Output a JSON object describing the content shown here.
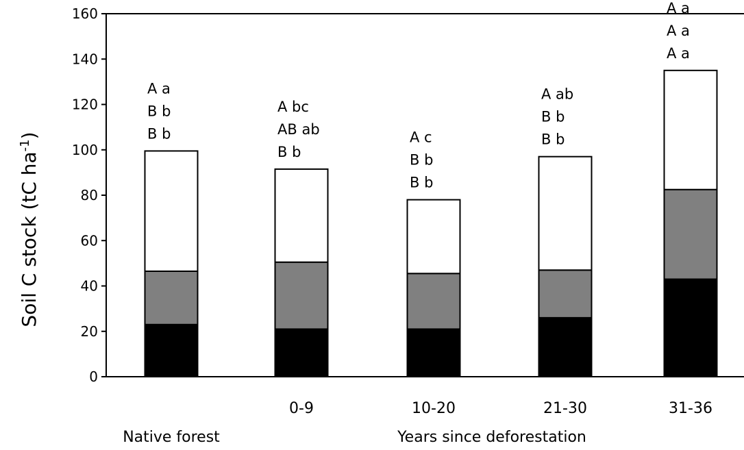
{
  "chart_data": {
    "type": "bar",
    "stacked": true,
    "categories": [
      "Native forest",
      "0-9",
      "10-20",
      "21-30",
      "31-36"
    ],
    "series": [
      {
        "values": [
          23,
          21,
          21,
          26,
          43
        ],
        "color": "#000000"
      },
      {
        "values": [
          23.5,
          29.5,
          24.5,
          21,
          39.5
        ],
        "color": "#808080"
      },
      {
        "values": [
          53,
          41,
          32.5,
          50,
          52.5
        ],
        "color": "#ffffff"
      }
    ],
    "totals": [
      99.5,
      91.5,
      78,
      97,
      135
    ],
    "significance_labels": [
      [
        "A a",
        "B b",
        "B b"
      ],
      [
        "A bc",
        "AB ab",
        "B b"
      ],
      [
        "A c",
        "B b",
        "B b"
      ],
      [
        "A ab",
        "B b",
        "B b"
      ],
      [
        "A a",
        "A a",
        "A a"
      ]
    ],
    "ylabel_main": "Soil C stock (tC ha",
    "ylabel_sup": "-1",
    "ylabel_close": ")",
    "xlabel": "Years since deforestation",
    "ylim": [
      0,
      160
    ],
    "yticks": [
      0,
      20,
      40,
      60,
      80,
      100,
      120,
      140,
      160
    ],
    "grid": false,
    "legend": "none"
  }
}
